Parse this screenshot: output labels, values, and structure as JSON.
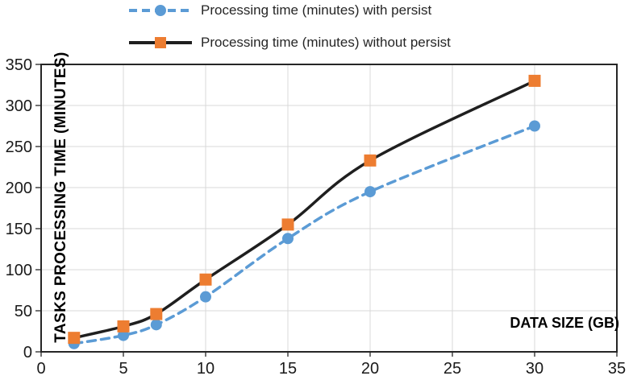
{
  "chart_data": {
    "type": "line",
    "title": "",
    "xlabel": "DATA SIZE (GB)",
    "ylabel": "TASKS PROCESSING TIME (MINUTES)",
    "x": [
      2,
      5,
      7,
      10,
      15,
      20,
      30
    ],
    "series": [
      {
        "name": "Processing time (minutes) with persist",
        "values": [
          10,
          20,
          33,
          67,
          138,
          195,
          275
        ],
        "line_color": "#5B9BD5",
        "line_style": "dashed",
        "marker": "circle",
        "marker_color": "#5B9BD5"
      },
      {
        "name": "Processing time (minutes) without persist",
        "values": [
          17,
          31,
          46,
          88,
          155,
          233,
          330
        ],
        "line_color": "#1F1F1F",
        "line_style": "solid",
        "marker": "square",
        "marker_color": "#ED7D31"
      }
    ],
    "xlim": [
      0,
      35
    ],
    "ylim": [
      0,
      350
    ],
    "x_ticks": [
      0,
      5,
      10,
      15,
      20,
      25,
      30,
      35
    ],
    "y_ticks": [
      0,
      50,
      100,
      150,
      200,
      250,
      300,
      350
    ],
    "grid": true,
    "gridline_color": "#D9D9D9",
    "axis_color": "#262626",
    "tick_label_color": "#1A1A1A",
    "plot_border": true,
    "smoothed_lines": true,
    "legend_position": "top-left"
  }
}
